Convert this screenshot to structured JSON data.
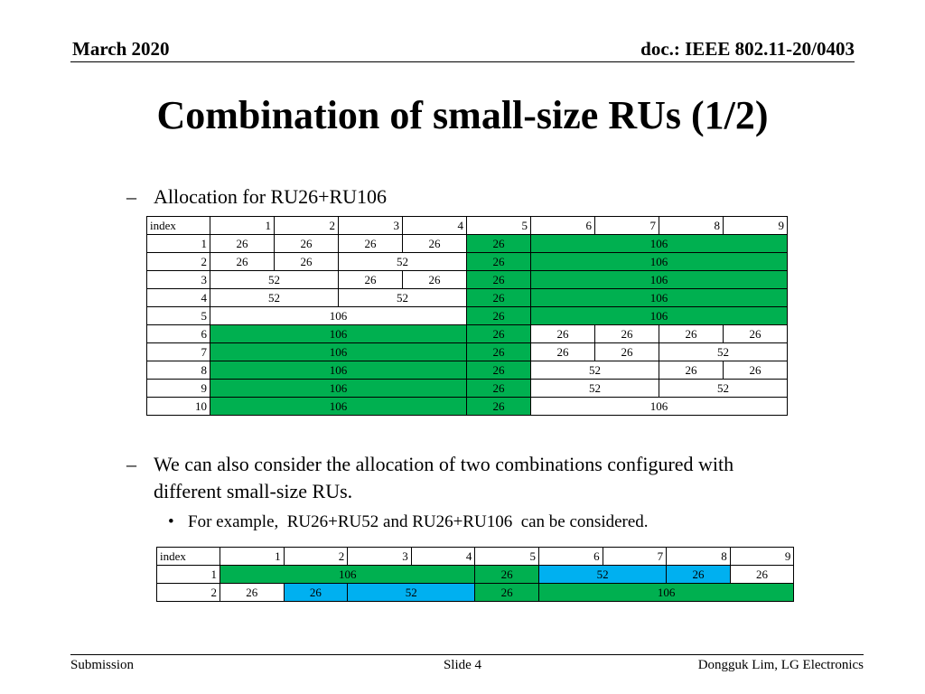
{
  "header": {
    "date": "March 2020",
    "doc": "doc.: IEEE 802.11-20/0403"
  },
  "title": "Combination of small-size RUs (1/2)",
  "bullet1": {
    "marker": "–",
    "text": "Allocation for RU26+RU106"
  },
  "table1": {
    "header": [
      "index",
      "1",
      "2",
      "3",
      "4",
      "5",
      "6",
      "7",
      "8",
      "9"
    ],
    "rows": [
      [
        {
          "t": "1",
          "s": 1,
          "c": "num"
        },
        {
          "t": "26",
          "s": 1
        },
        {
          "t": "26",
          "s": 1
        },
        {
          "t": "26",
          "s": 1
        },
        {
          "t": "26",
          "s": 1
        },
        {
          "t": "26",
          "s": 1,
          "c": "g"
        },
        {
          "t": "106",
          "s": 4,
          "c": "g"
        }
      ],
      [
        {
          "t": "2",
          "s": 1,
          "c": "num"
        },
        {
          "t": "26",
          "s": 1
        },
        {
          "t": "26",
          "s": 1
        },
        {
          "t": "52",
          "s": 2
        },
        {
          "t": "26",
          "s": 1,
          "c": "g"
        },
        {
          "t": "106",
          "s": 4,
          "c": "g"
        }
      ],
      [
        {
          "t": "3",
          "s": 1,
          "c": "num"
        },
        {
          "t": "52",
          "s": 2
        },
        {
          "t": "26",
          "s": 1
        },
        {
          "t": "26",
          "s": 1
        },
        {
          "t": "26",
          "s": 1,
          "c": "g"
        },
        {
          "t": "106",
          "s": 4,
          "c": "g"
        }
      ],
      [
        {
          "t": "4",
          "s": 1,
          "c": "num"
        },
        {
          "t": "52",
          "s": 2
        },
        {
          "t": "52",
          "s": 2
        },
        {
          "t": "26",
          "s": 1,
          "c": "g"
        },
        {
          "t": "106",
          "s": 4,
          "c": "g"
        }
      ],
      [
        {
          "t": "5",
          "s": 1,
          "c": "num"
        },
        {
          "t": "106",
          "s": 4
        },
        {
          "t": "26",
          "s": 1,
          "c": "g"
        },
        {
          "t": "106",
          "s": 4,
          "c": "g"
        }
      ],
      [
        {
          "t": "6",
          "s": 1,
          "c": "num"
        },
        {
          "t": "106",
          "s": 4,
          "c": "g"
        },
        {
          "t": "26",
          "s": 1,
          "c": "g"
        },
        {
          "t": "26",
          "s": 1
        },
        {
          "t": "26",
          "s": 1
        },
        {
          "t": "26",
          "s": 1
        },
        {
          "t": "26",
          "s": 1
        }
      ],
      [
        {
          "t": "7",
          "s": 1,
          "c": "num"
        },
        {
          "t": "106",
          "s": 4,
          "c": "g"
        },
        {
          "t": "26",
          "s": 1,
          "c": "g"
        },
        {
          "t": "26",
          "s": 1
        },
        {
          "t": "26",
          "s": 1
        },
        {
          "t": "52",
          "s": 2
        }
      ],
      [
        {
          "t": "8",
          "s": 1,
          "c": "num"
        },
        {
          "t": "106",
          "s": 4,
          "c": "g"
        },
        {
          "t": "26",
          "s": 1,
          "c": "g"
        },
        {
          "t": "52",
          "s": 2
        },
        {
          "t": "26",
          "s": 1
        },
        {
          "t": "26",
          "s": 1
        }
      ],
      [
        {
          "t": "9",
          "s": 1,
          "c": "num"
        },
        {
          "t": "106",
          "s": 4,
          "c": "g"
        },
        {
          "t": "26",
          "s": 1,
          "c": "g"
        },
        {
          "t": "52",
          "s": 2
        },
        {
          "t": "52",
          "s": 2
        }
      ],
      [
        {
          "t": "10",
          "s": 1,
          "c": "num"
        },
        {
          "t": "106",
          "s": 4,
          "c": "g"
        },
        {
          "t": "26",
          "s": 1,
          "c": "g"
        },
        {
          "t": "106",
          "s": 4
        }
      ]
    ]
  },
  "bullet2": {
    "marker": "–",
    "line1": "We can also consider the allocation of two combinations configured with",
    "line2": "different small-size RUs."
  },
  "bullet3": {
    "marker": "•",
    "text": "For example,  RU26+RU52 and RU26+RU106  can be considered."
  },
  "table2": {
    "header": [
      "index",
      "1",
      "2",
      "3",
      "4",
      "5",
      "6",
      "7",
      "8",
      "9"
    ],
    "rows": [
      [
        {
          "t": "1",
          "s": 1,
          "c": "num"
        },
        {
          "t": "106",
          "s": 4,
          "c": "g"
        },
        {
          "t": "26",
          "s": 1,
          "c": "g"
        },
        {
          "t": "52",
          "s": 2,
          "c": "b"
        },
        {
          "t": "26",
          "s": 1,
          "c": "b"
        },
        {
          "t": "26",
          "s": 1
        }
      ],
      [
        {
          "t": "2",
          "s": 1,
          "c": "num"
        },
        {
          "t": "26",
          "s": 1
        },
        {
          "t": "26",
          "s": 1,
          "c": "b"
        },
        {
          "t": "52",
          "s": 2,
          "c": "b"
        },
        {
          "t": "26",
          "s": 1,
          "c": "g"
        },
        {
          "t": "106",
          "s": 4,
          "c": "g"
        }
      ]
    ]
  },
  "colors": {
    "green": "#00b050",
    "blue": "#00b0f0"
  },
  "footer": {
    "left": "Submission",
    "center": "Slide 4",
    "right": "Dongguk Lim, LG Electronics"
  }
}
